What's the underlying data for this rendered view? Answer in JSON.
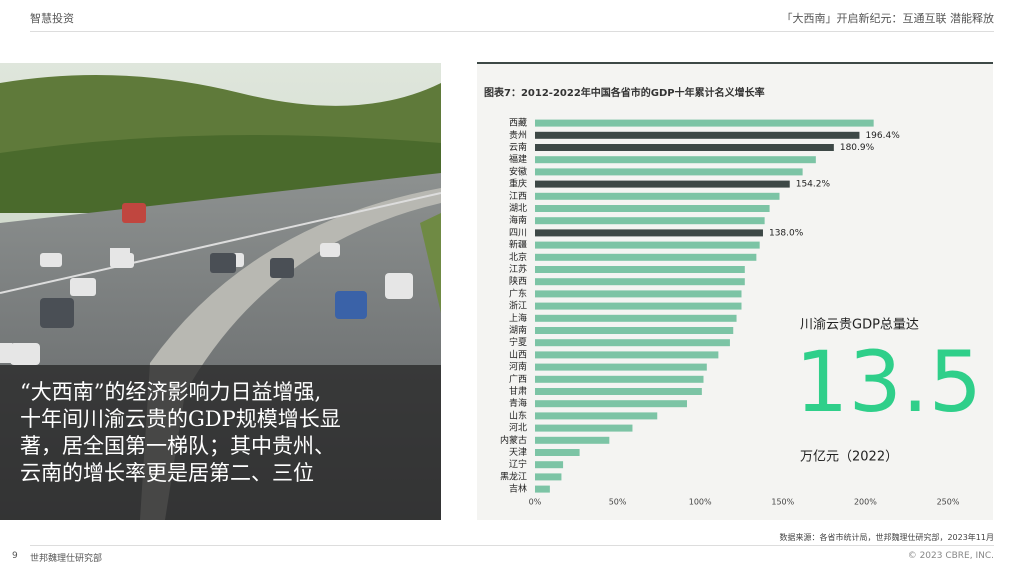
{
  "header": {
    "left": "智慧投资",
    "right": "「大西南」开启新纪元：互通互联 潜能释放"
  },
  "quote": [
    "“大西南”的经济影响力日益增强,",
    "十年间川渝云贵的GDP规模增长显",
    "著，居全国第一梯队；其中贵州、",
    "云南的增长率更是居第二、三位"
  ],
  "chart_data": {
    "type": "hbar",
    "title": "图表7：2012-2022年中国各省市的GDP十年累计名义增长率",
    "categories": [
      "西藏",
      "贵州",
      "云南",
      "福建",
      "安徽",
      "重庆",
      "江西",
      "湖北",
      "海南",
      "四川",
      "新疆",
      "北京",
      "江苏",
      "陕西",
      "广东",
      "浙江",
      "上海",
      "湖南",
      "宁夏",
      "山西",
      "河南",
      "广西",
      "甘肃",
      "青海",
      "山东",
      "河北",
      "内蒙古",
      "天津",
      "辽宁",
      "黑龙江",
      "吉林"
    ],
    "values": [
      205,
      196.4,
      180.9,
      170,
      162,
      154.2,
      148,
      142,
      139,
      138.0,
      136,
      134,
      127,
      127,
      125,
      125,
      122,
      120,
      118,
      111,
      104,
      102,
      101,
      92,
      74,
      59,
      45,
      27,
      17,
      16,
      9
    ],
    "value_labels": [
      null,
      "196.4%",
      "180.9%",
      null,
      null,
      "154.2%",
      null,
      null,
      null,
      "138.0%",
      null,
      null,
      null,
      null,
      null,
      null,
      null,
      null,
      null,
      null,
      null,
      null,
      null,
      null,
      null,
      null,
      null,
      null,
      null,
      null,
      null
    ],
    "color": "#7cc4a5",
    "highlight_color": "#3d4846",
    "xlim": [
      0,
      250
    ],
    "xticks": [
      {
        "value": 0,
        "label": "0%"
      },
      {
        "value": 50,
        "label": "50%"
      },
      {
        "value": 100,
        "label": "100%"
      },
      {
        "value": 150,
        "label": "150%"
      },
      {
        "value": 200,
        "label": "200%"
      },
      {
        "value": 250,
        "label": "250%"
      }
    ]
  },
  "callout": {
    "lead": "川渝云贵GDP总量达",
    "number": "13.5",
    "unit": "万亿元（2022）"
  },
  "source": "数据来源：各省市统计局，世邦魏理仕研究部，2023年11月",
  "footer": {
    "page": "9",
    "left": "世邦魏理仕研究部",
    "right": "© 2023 CBRE, INC."
  }
}
